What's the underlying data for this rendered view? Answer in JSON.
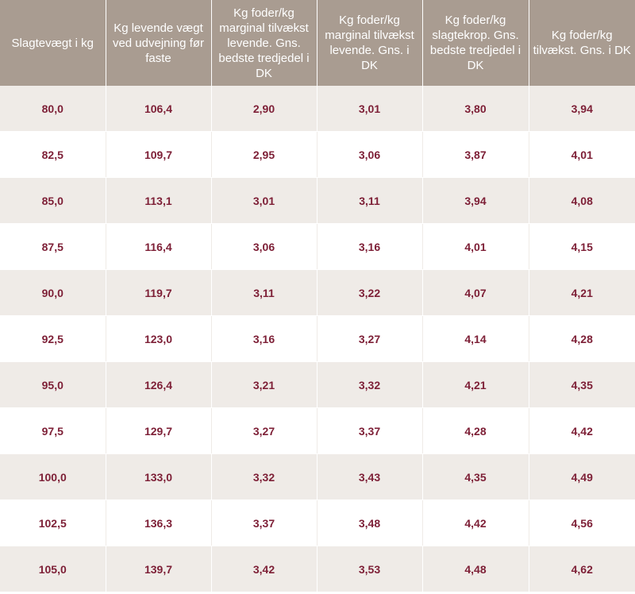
{
  "table": {
    "headers": [
      "Slagtevægt i kg",
      "Kg levende vægt ved udvejning før faste",
      "Kg foder/kg marginal tilvækst levende. Gns. bedste tredjedel i DK",
      "Kg foder/kg marginal tilvækst levende. Gns. i DK",
      "Kg foder/kg slagtekrop. Gns. bedste tredjedel i DK",
      "Kg foder/kg tilvækst. Gns. i DK"
    ],
    "rows": [
      [
        "80,0",
        "106,4",
        "2,90",
        "3,01",
        "3,80",
        "3,94"
      ],
      [
        "82,5",
        "109,7",
        "2,95",
        "3,06",
        "3,87",
        "4,01"
      ],
      [
        "85,0",
        "113,1",
        "3,01",
        "3,11",
        "3,94",
        "4,08"
      ],
      [
        "87,5",
        "116,4",
        "3,06",
        "3,16",
        "4,01",
        "4,15"
      ],
      [
        "90,0",
        "119,7",
        "3,11",
        "3,22",
        "4,07",
        "4,21"
      ],
      [
        "92,5",
        "123,0",
        "3,16",
        "3,27",
        "4,14",
        "4,28"
      ],
      [
        "95,0",
        "126,4",
        "3,21",
        "3,32",
        "4,21",
        "4,35"
      ],
      [
        "97,5",
        "129,7",
        "3,27",
        "3,37",
        "4,28",
        "4,42"
      ],
      [
        "100,0",
        "133,0",
        "3,32",
        "3,43",
        "4,35",
        "4,49"
      ],
      [
        "102,5",
        "136,3",
        "3,37",
        "3,48",
        "4,42",
        "4,56"
      ],
      [
        "105,0",
        "139,7",
        "3,42",
        "3,53",
        "4,48",
        "4,62"
      ]
    ]
  },
  "colors": {
    "header_bg": "#a99c91",
    "header_text": "#ffffff",
    "value_text": "#7d1f36",
    "stripe_bg": "#efebe7"
  }
}
